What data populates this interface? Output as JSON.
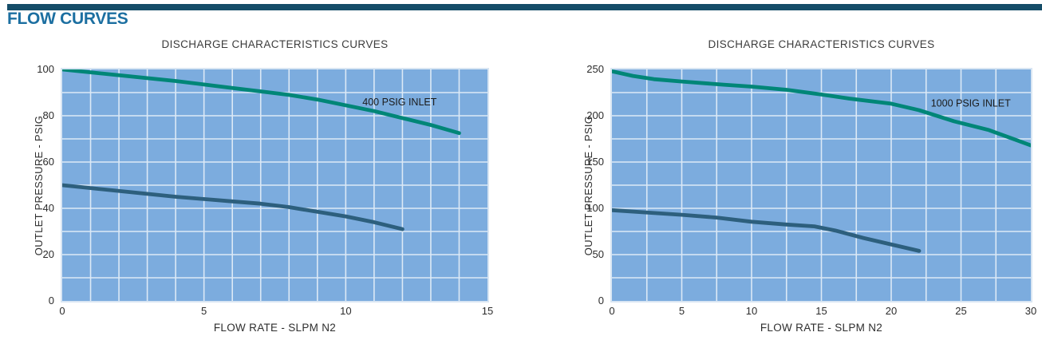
{
  "page": {
    "heading": "FLOW CURVES"
  },
  "colors": {
    "header_bar": "#154D68",
    "heading_text": "#1C6FA1",
    "plot_background": "#7CACDE",
    "plot_border": "#D9E6F3",
    "grid_line": "#DCE9F6",
    "teal_curve": "#008677",
    "navy_curve": "#2D5F7D",
    "label_text": "#1b1b1b"
  },
  "chart_data": [
    {
      "type": "line",
      "title": "DISCHARGE CHARACTERISTICS CURVES",
      "xlabel": "FLOW RATE - SLPM N2",
      "ylabel": "OUTLET PRESSURE - PSIG",
      "xlim": [
        0,
        15
      ],
      "ylim": [
        0,
        100
      ],
      "x_ticks": [
        0,
        5,
        10,
        15
      ],
      "y_ticks": [
        0,
        20,
        40,
        60,
        80,
        100
      ],
      "x_grid_step": 1,
      "y_grid_step": 10,
      "grid": true,
      "legend_position": "inline-label",
      "series": [
        {
          "color": "teal_curve",
          "label": {
            "text": "400 PSIG INLET",
            "x": 11.9,
            "y": 86
          },
          "points": [
            [
              0,
              100
            ],
            [
              2,
              97.5
            ],
            [
              4,
              95
            ],
            [
              5,
              93.5
            ],
            [
              6,
              92
            ],
            [
              7,
              90.5
            ],
            [
              8,
              89
            ],
            [
              9,
              87
            ],
            [
              10,
              84.5
            ],
            [
              11,
              82
            ],
            [
              12,
              79
            ],
            [
              13,
              76
            ],
            [
              14,
              72.5
            ]
          ]
        },
        {
          "color": "navy_curve",
          "label": null,
          "points": [
            [
              0,
              50
            ],
            [
              2,
              47.5
            ],
            [
              4,
              45
            ],
            [
              6,
              43
            ],
            [
              7,
              42
            ],
            [
              8,
              40.5
            ],
            [
              10,
              36.5
            ],
            [
              11,
              34
            ],
            [
              12,
              31
            ]
          ]
        }
      ]
    },
    {
      "type": "line",
      "title": "DISCHARGE CHARACTERISTICS CURVES",
      "xlabel": "FLOW RATE - SLPM N2",
      "ylabel": "OUTLET PRESSURE - PSIG",
      "xlim": [
        0,
        30
      ],
      "ylim": [
        0,
        250
      ],
      "x_ticks": [
        0,
        5,
        10,
        15,
        20,
        25,
        30
      ],
      "y_ticks": [
        0,
        50,
        100,
        150,
        200,
        250
      ],
      "x_grid_step": 2.5,
      "y_grid_step": 25,
      "grid": true,
      "legend_position": "inline-label",
      "series": [
        {
          "color": "teal_curve",
          "label": {
            "text": "1000 PSIG INLET",
            "x": 25.7,
            "y": 214
          },
          "points": [
            [
              0,
              248
            ],
            [
              1.5,
              243
            ],
            [
              3,
              239.5
            ],
            [
              5,
              237
            ],
            [
              8,
              233.5
            ],
            [
              10,
              231.5
            ],
            [
              12.5,
              228
            ],
            [
              15,
              223
            ],
            [
              17,
              218.5
            ],
            [
              20,
              213
            ],
            [
              22,
              206
            ],
            [
              24.5,
              194
            ],
            [
              27,
              184.5
            ],
            [
              30,
              168
            ]
          ]
        },
        {
          "color": "navy_curve",
          "label": null,
          "points": [
            [
              0,
              98
            ],
            [
              2.5,
              95.5
            ],
            [
              5,
              93
            ],
            [
              7.5,
              90
            ],
            [
              10,
              85.5
            ],
            [
              12.5,
              82.5
            ],
            [
              14.5,
              80.5
            ],
            [
              16,
              76
            ],
            [
              18,
              68
            ],
            [
              20,
              61
            ],
            [
              22,
              54
            ]
          ]
        }
      ]
    }
  ]
}
